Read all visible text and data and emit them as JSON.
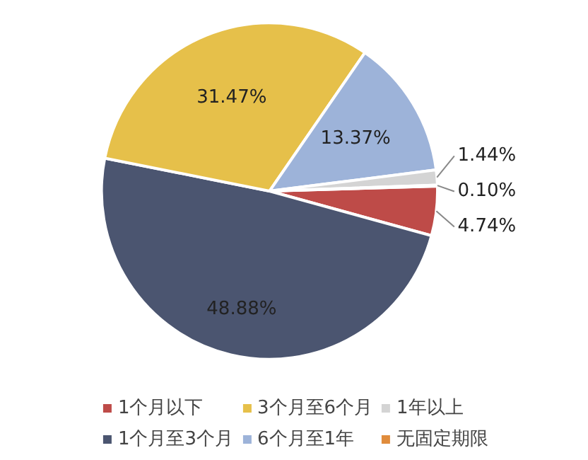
{
  "chart_data": {
    "type": "pie",
    "categories": [
      "1个月以下",
      "1个月至3个月",
      "3个月至6个月",
      "6个月至1年",
      "1年以上",
      "无固定期限"
    ],
    "values": [
      4.74,
      48.88,
      31.47,
      13.37,
      1.44,
      0.1
    ],
    "colors": [
      "#be4b48",
      "#4b5570",
      "#e6c04a",
      "#9db3d9",
      "#d4d4d4",
      "#e08c3c"
    ],
    "value_labels": [
      "4.74%",
      "48.88%",
      "31.47%",
      "13.37%",
      "1.44%",
      "0.10%"
    ],
    "legend": "bottom"
  }
}
